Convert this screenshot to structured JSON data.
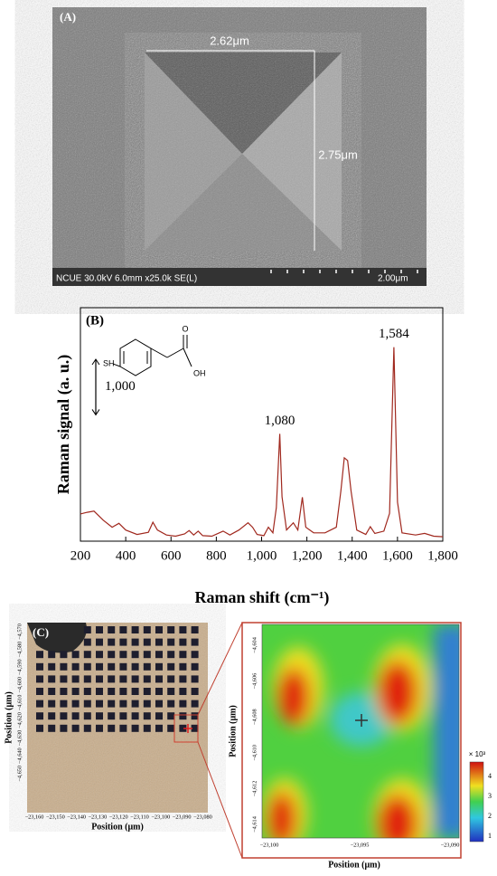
{
  "panel_a": {
    "label": "(A)",
    "width_label": "2.62μm",
    "height_label": "2.75μm",
    "info": "NCUE 30.0kV 6.0mm x25.0k SE(L)",
    "scale": "2.00μm"
  },
  "structure": {
    "sh": "SH",
    "o": "O",
    "oh": "OH"
  },
  "chart_data": {
    "type": "line",
    "label": "(B)",
    "xlabel": "Raman shift (cm⁻¹)",
    "ylabel": "Raman signal (a. u.)",
    "color": "#a0281e",
    "x": [
      200,
      230,
      260,
      300,
      340,
      370,
      400,
      450,
      500,
      520,
      540,
      580,
      620,
      660,
      680,
      700,
      720,
      740,
      780,
      830,
      860,
      900,
      940,
      960,
      980,
      1010,
      1030,
      1050,
      1065,
      1080,
      1090,
      1110,
      1140,
      1160,
      1180,
      1195,
      1230,
      1280,
      1330,
      1350,
      1365,
      1380,
      1395,
      1420,
      1460,
      1480,
      1500,
      1540,
      1565,
      1584,
      1600,
      1620,
      1680,
      1720,
      1760,
      1800
    ],
    "values": [
      490,
      520,
      540,
      380,
      250,
      320,
      200,
      120,
      160,
      340,
      200,
      110,
      90,
      130,
      190,
      110,
      180,
      100,
      90,
      180,
      110,
      200,
      330,
      250,
      120,
      100,
      250,
      150,
      600,
      1930,
      800,
      200,
      330,
      200,
      790,
      250,
      150,
      150,
      250,
      900,
      1500,
      1450,
      900,
      200,
      120,
      260,
      140,
      180,
      500,
      3490,
      700,
      150,
      110,
      140,
      90,
      80
    ],
    "xlim": [
      200,
      1800
    ],
    "ylim": [
      0,
      4200
    ],
    "xticks": [
      200,
      400,
      600,
      800,
      {
        "value": 1000,
        "label": "1,000"
      },
      {
        "value": 1200,
        "label": "1,200"
      },
      {
        "value": 1400,
        "label": "1,400"
      },
      {
        "value": 1600,
        "label": "1,600"
      },
      {
        "value": 1800,
        "label": "1,800"
      }
    ],
    "annotations": [
      {
        "value": 1080,
        "label": "1,080"
      },
      {
        "value": 1584,
        "label": "1,584"
      }
    ],
    "scalebar": {
      "value": 1000,
      "label": "1,000"
    }
  },
  "panel_c": {
    "label": "(C)",
    "left_xlabel": "Position (μm)",
    "left_ylabel": "Position (μm)",
    "left_xticks": [
      "−23,160",
      "−23,150",
      "−23,140",
      "−23,130",
      "−23,120",
      "−23,110",
      "−23,100",
      "−23,090",
      "−23,080"
    ],
    "left_yticks": [
      "−4,570",
      "−4,580",
      "−4,590",
      "−4,600",
      "−4,610",
      "−4,620",
      "−4,630",
      "−4,640",
      "−4,650"
    ],
    "right_xlabel": "Position (μm)",
    "right_ylabel": "Position (μm)",
    "right_xticks": [
      "−23,100",
      "−23,095",
      "−23,090"
    ],
    "right_yticks": [
      "−4,604",
      "−4,606",
      "−4,608",
      "−4,610",
      "−4,612",
      "−4,614"
    ],
    "colorbar_title": "× 10³",
    "colorbar_ticks": [
      "4",
      "3",
      "2",
      "1"
    ]
  }
}
